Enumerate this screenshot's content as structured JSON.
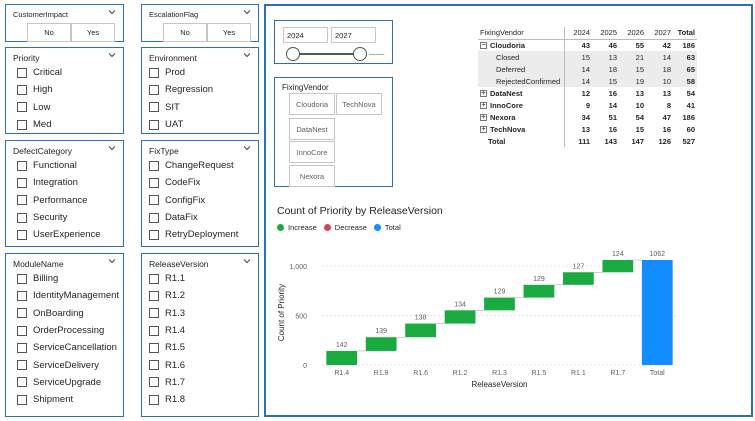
{
  "slicers": {
    "customer_impact": {
      "title": "CustomerImpact",
      "options": [
        "No",
        "Yes"
      ]
    },
    "escalation_flag": {
      "title": "EscalationFlag",
      "options": [
        "No",
        "Yes"
      ]
    },
    "priority": {
      "title": "Priority",
      "items": [
        "Critical",
        "High",
        "Low",
        "Med"
      ]
    },
    "environment": {
      "title": "Environment",
      "items": [
        "Prod",
        "Regression",
        "SIT",
        "UAT"
      ]
    },
    "defect_category": {
      "title": "DefectCategory",
      "items": [
        "Functional",
        "Integration",
        "Performance",
        "Security",
        "UserExperience"
      ]
    },
    "fix_type": {
      "title": "FixType",
      "items": [
        "ChangeRequest",
        "CodeFix",
        "ConfigFix",
        "DataFix",
        "RetryDeployment"
      ]
    },
    "module_name": {
      "title": "ModuleName",
      "items": [
        "Billing",
        "IdentityManagement",
        "OnBoarding",
        "OrderProcessing",
        "ServiceCancellation",
        "ServiceDelivery",
        "ServiceUpgrade",
        "Shipment"
      ]
    },
    "release_version": {
      "title": "ReleaseVersion",
      "items": [
        "R1.1",
        "R1.2",
        "R1.3",
        "R1.4",
        "R1.5",
        "R1.6",
        "R1.7",
        "R1.8"
      ]
    }
  },
  "year_slider": {
    "start": "2024",
    "end": "2027"
  },
  "vendor_slicer": {
    "title": "FixingVendor",
    "options": [
      "Cloudoria",
      "TechNova",
      "DataNest",
      "InnoCore",
      "Nexora"
    ]
  },
  "matrix": {
    "header": [
      "FixingVendor",
      "2024",
      "2025",
      "2026",
      "2027",
      "Total"
    ],
    "rows": [
      {
        "label": "Cloudoria",
        "values": [
          "43",
          "46",
          "55",
          "42",
          "186"
        ],
        "expand": "⊟",
        "bold": true,
        "level": 0
      },
      {
        "label": "Closed",
        "values": [
          "15",
          "13",
          "21",
          "14",
          "63"
        ],
        "expand": "",
        "bold": false,
        "level": 1
      },
      {
        "label": "Deferred",
        "values": [
          "14",
          "18",
          "15",
          "18",
          "65"
        ],
        "expand": "",
        "bold": false,
        "level": 1
      },
      {
        "label": "RejectedConfirmed",
        "values": [
          "14",
          "15",
          "19",
          "10",
          "58"
        ],
        "expand": "",
        "bold": false,
        "level": 1
      },
      {
        "label": "DataNest",
        "values": [
          "12",
          "16",
          "13",
          "13",
          "54"
        ],
        "expand": "⊞",
        "bold": true,
        "level": 0
      },
      {
        "label": "InnoCore",
        "values": [
          "9",
          "14",
          "10",
          "8",
          "41"
        ],
        "expand": "⊞",
        "bold": true,
        "level": 0
      },
      {
        "label": "Nexora",
        "values": [
          "34",
          "51",
          "54",
          "47",
          "186"
        ],
        "expand": "⊞",
        "bold": true,
        "level": 0
      },
      {
        "label": "TechNova",
        "values": [
          "13",
          "16",
          "15",
          "16",
          "60"
        ],
        "expand": "⊞",
        "bold": true,
        "level": 0
      }
    ],
    "total": {
      "label": "Total",
      "values": [
        "111",
        "143",
        "147",
        "126",
        "527"
      ]
    }
  },
  "colors": {
    "increase": "#1aab40",
    "decrease": "#d64550",
    "total": "#118dff",
    "accent": "#2f6fb0"
  },
  "chart_data": {
    "type": "waterfall",
    "title": "Count of Priority by ReleaseVersion",
    "legend": [
      {
        "name": "Increase",
        "color": "#1aab40"
      },
      {
        "name": "Decrease",
        "color": "#d64550"
      },
      {
        "name": "Total",
        "color": "#118dff"
      }
    ],
    "xlabel": "ReleaseVersion",
    "ylabel": "Count of Priority",
    "categories": [
      "R1.4",
      "R1.8",
      "R1.6",
      "R1.2",
      "R1.3",
      "R1.5",
      "R1.1",
      "R1.7"
    ],
    "values": [
      142,
      139,
      138,
      134,
      129,
      129,
      127,
      124
    ],
    "total_label": "Total",
    "total": 1062,
    "ylim": [
      0,
      1062
    ],
    "yticks": [
      {
        "v": 0,
        "label": "0"
      },
      {
        "v": 500,
        "label": "500"
      },
      {
        "v": 1000,
        "label": "1,000"
      }
    ]
  }
}
